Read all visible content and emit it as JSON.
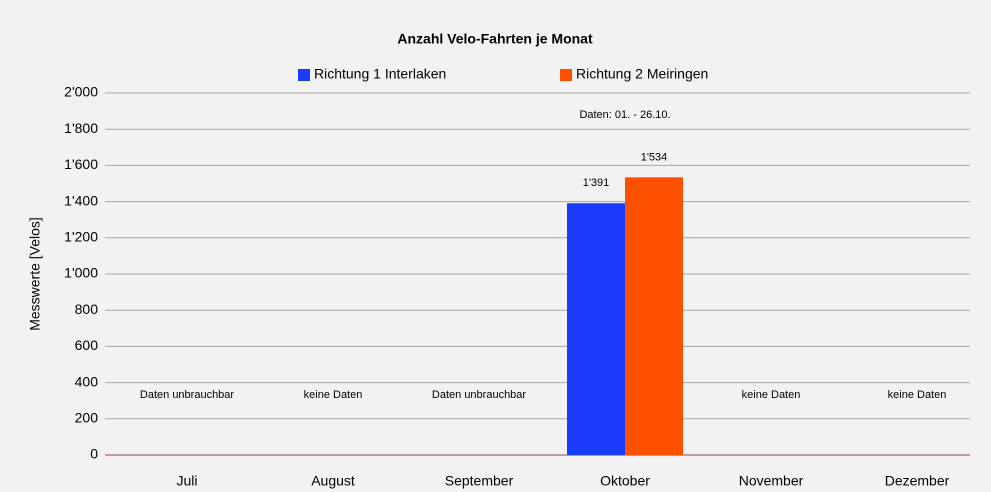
{
  "chart_data": {
    "type": "bar",
    "title": "Anzahl Velo-Fahrten je Monat",
    "ylabel": "Messwerte [Velos]",
    "annotation": "Daten: 01. - 26.10.",
    "categories": [
      "Juli",
      "August",
      "September",
      "Oktober",
      "November",
      "Dezember"
    ],
    "category_notes": [
      "Daten unbrauchbar",
      "keine Daten",
      "Daten unbrauchbar",
      null,
      "keine Daten",
      "keine Daten"
    ],
    "series": [
      {
        "name": "Richtung 1 Interlaken",
        "color": "#1a3cff",
        "values": [
          null,
          null,
          null,
          1391,
          null,
          null
        ],
        "value_labels": [
          null,
          null,
          null,
          "1'391",
          null,
          null
        ]
      },
      {
        "name": "Richtung 2 Meiringen",
        "color": "#ff5000",
        "values": [
          null,
          null,
          null,
          1534,
          null,
          null
        ],
        "value_labels": [
          null,
          null,
          null,
          "1'534",
          null,
          null
        ]
      }
    ],
    "ylim": [
      0,
      2000
    ],
    "yticks": [
      0,
      200,
      400,
      600,
      800,
      {
        "value": 1000,
        "label": "1'000"
      },
      {
        "value": 1200,
        "label": "1'200"
      },
      {
        "value": 1400,
        "label": "1'400"
      },
      {
        "value": 1600,
        "label": "1'600"
      },
      {
        "value": 1800,
        "label": "1'800"
      },
      {
        "value": 2000,
        "label": "2'000"
      }
    ],
    "grid": true,
    "legend": "top"
  }
}
